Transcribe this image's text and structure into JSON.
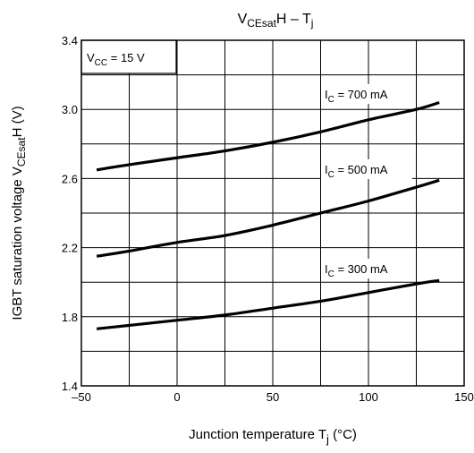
{
  "chart_data": {
    "type": "line",
    "title_parts": {
      "main": "V",
      "sub": "CEsat",
      "rest": "H – T",
      "sub2": "j"
    },
    "xlabel_parts": {
      "main": "Junction temperature   T",
      "sub": "j",
      "unit": "   (°C)"
    },
    "ylabel_parts": {
      "main": "IGBT saturation voltage   V",
      "sub": "CEsat",
      "rest": "H   (V)"
    },
    "condition_parts": {
      "main": "V",
      "sub": "CC",
      "rest": " = 15 V"
    },
    "xlim": [
      -50,
      150
    ],
    "ylim": [
      1.4,
      3.4
    ],
    "x_ticks": [
      -50,
      0,
      50,
      100,
      150
    ],
    "x_tick_labels": [
      "–50",
      "0",
      "50",
      "100",
      "150"
    ],
    "y_ticks": [
      1.4,
      1.8,
      2.2,
      2.6,
      3.0,
      3.4
    ],
    "y_tick_labels": [
      "1.4",
      "1.8",
      "2.2",
      "2.6",
      "3.0",
      "3.4"
    ],
    "x_grid": [
      -50,
      -25,
      0,
      25,
      50,
      75,
      100,
      125,
      150
    ],
    "y_grid": [
      1.4,
      1.6,
      1.8,
      2.0,
      2.2,
      2.4,
      2.6,
      2.8,
      3.0,
      3.2,
      3.4
    ],
    "grid": true,
    "series": [
      {
        "label_parts": {
          "main": "I",
          "sub": "C",
          "rest": " = 700 mA"
        },
        "x": [
          -42,
          -25,
          0,
          25,
          50,
          75,
          100,
          125,
          137
        ],
        "y": [
          2.65,
          2.68,
          2.72,
          2.76,
          2.81,
          2.87,
          2.94,
          3.0,
          3.04
        ]
      },
      {
        "label_parts": {
          "main": "I",
          "sub": "C",
          "rest": " = 500 mA"
        },
        "x": [
          -42,
          -25,
          0,
          25,
          50,
          75,
          100,
          125,
          137
        ],
        "y": [
          2.15,
          2.18,
          2.23,
          2.27,
          2.33,
          2.4,
          2.47,
          2.55,
          2.59
        ]
      },
      {
        "label_parts": {
          "main": "I",
          "sub": "C",
          "rest": " = 300 mA"
        },
        "x": [
          -42,
          -25,
          0,
          25,
          50,
          75,
          100,
          125,
          137
        ],
        "y": [
          1.73,
          1.75,
          1.78,
          1.81,
          1.85,
          1.89,
          1.94,
          1.99,
          2.01
        ]
      }
    ]
  }
}
